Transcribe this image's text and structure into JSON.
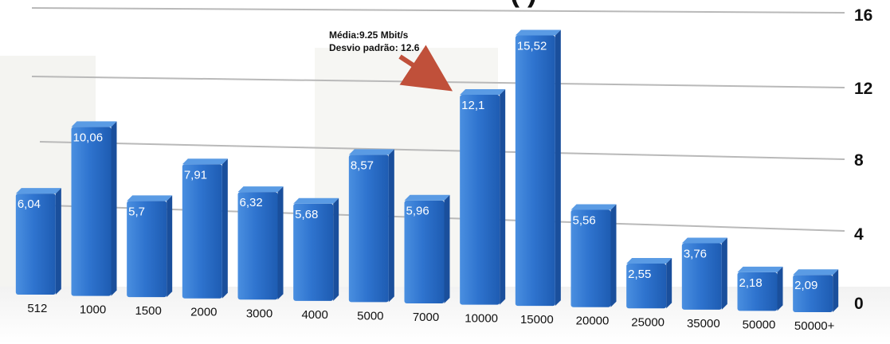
{
  "chart_data": {
    "type": "bar",
    "title_partial": "(           )",
    "categories": [
      "512",
      "1000",
      "1500",
      "2000",
      "3000",
      "4000",
      "5000",
      "7000",
      "10000",
      "15000",
      "20000",
      "25000",
      "35000",
      "50000",
      "50000+"
    ],
    "values": [
      6.04,
      10.06,
      5.7,
      7.91,
      6.32,
      5.68,
      8.57,
      5.96,
      12.1,
      15.52,
      5.56,
      2.55,
      3.76,
      2.18,
      2.09
    ],
    "value_labels": [
      "6,04",
      "10,06",
      "5,7",
      "7,91",
      "6,32",
      "5,68",
      "8,57",
      "5,96",
      "12,1",
      "15,52",
      "5,56",
      "2,55",
      "3,76",
      "2,18",
      "2,09"
    ],
    "yticks": [
      "0",
      "4",
      "8",
      "12",
      "16"
    ],
    "ylim": [
      0,
      16
    ],
    "grid": true,
    "annotation": {
      "line1": "Média:9.25 Mbit/s",
      "line2": "Desvio padrão: 12.6"
    },
    "colors": {
      "bar_front": "#2f74cf",
      "bar_dark": "#1a4f9c",
      "bar_top": "#5a9be4",
      "arrow": "#c0503a",
      "grid": "#b9b9b9"
    }
  }
}
